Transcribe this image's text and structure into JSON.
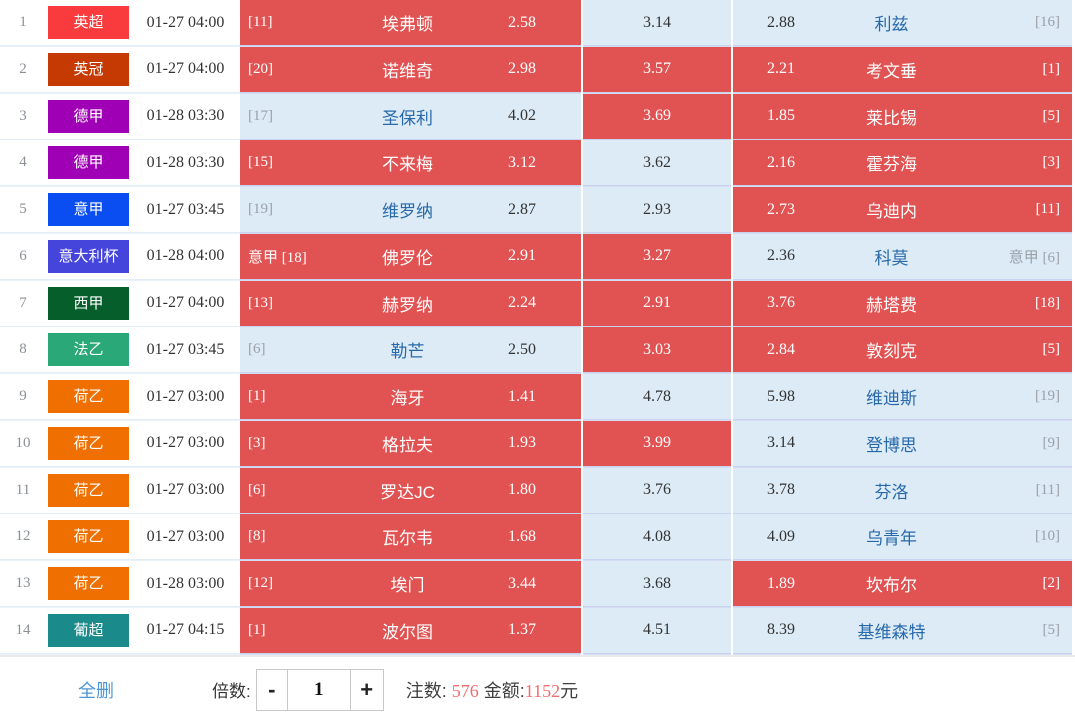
{
  "colors": {
    "selected_cell": "#e15252",
    "unselected_cell": "#dcebf6",
    "cell_separator": "#c9d2ef",
    "team_link_blue": "#2769ab",
    "rank_gray": "#9aa1a9",
    "stake_number_red": "#f26d6d",
    "delete_link_blue": "#4d96d4"
  },
  "table": {
    "rows": [
      {
        "num": "1",
        "league": {
          "label": "英超",
          "color": "#fa3b3d"
        },
        "time": "01-27 04:00",
        "home": {
          "rank": "[11]",
          "name": "埃弗顿",
          "odds": "2.58",
          "selected": true
        },
        "draw": {
          "odds": "3.14",
          "selected": false
        },
        "away": {
          "odds": "2.88",
          "name": "利兹",
          "rank": "[16]",
          "selected": false
        }
      },
      {
        "num": "2",
        "league": {
          "label": "英冠",
          "color": "#c43a02"
        },
        "time": "01-27 04:00",
        "home": {
          "rank": "[20]",
          "name": "诺维奇",
          "odds": "2.98",
          "selected": true
        },
        "draw": {
          "odds": "3.57",
          "selected": true
        },
        "away": {
          "odds": "2.21",
          "name": "考文垂",
          "rank": "[1]",
          "selected": true
        }
      },
      {
        "num": "3",
        "league": {
          "label": "德甲",
          "color": "#a000b5"
        },
        "time": "01-28 03:30",
        "home": {
          "rank": "[17]",
          "name": "圣保利",
          "odds": "4.02",
          "selected": false
        },
        "draw": {
          "odds": "3.69",
          "selected": true
        },
        "away": {
          "odds": "1.85",
          "name": "莱比锡",
          "rank": "[5]",
          "selected": true
        }
      },
      {
        "num": "4",
        "league": {
          "label": "德甲",
          "color": "#a000b5"
        },
        "time": "01-28 03:30",
        "home": {
          "rank": "[15]",
          "name": "不来梅",
          "odds": "3.12",
          "selected": true
        },
        "draw": {
          "odds": "3.62",
          "selected": false
        },
        "away": {
          "odds": "2.16",
          "name": "霍芬海",
          "rank": "[3]",
          "selected": true
        }
      },
      {
        "num": "5",
        "league": {
          "label": "意甲",
          "color": "#0a4ef2"
        },
        "time": "01-27 03:45",
        "home": {
          "rank": "[19]",
          "name": "维罗纳",
          "odds": "2.87",
          "selected": false
        },
        "draw": {
          "odds": "2.93",
          "selected": false
        },
        "away": {
          "odds": "2.73",
          "name": "乌迪内",
          "rank": "[11]",
          "selected": true
        }
      },
      {
        "num": "6",
        "league": {
          "label": "意大利杯",
          "color": "#4545dc"
        },
        "time": "01-28 04:00",
        "home": {
          "rank": "意甲 [18]",
          "name": "佛罗伦",
          "odds": "2.91",
          "selected": true
        },
        "draw": {
          "odds": "3.27",
          "selected": true
        },
        "away": {
          "odds": "2.36",
          "name": "科莫",
          "rank": "意甲 [6]",
          "selected": false
        }
      },
      {
        "num": "7",
        "league": {
          "label": "西甲",
          "color": "#065f2b"
        },
        "time": "01-27 04:00",
        "home": {
          "rank": "[13]",
          "name": "赫罗纳",
          "odds": "2.24",
          "selected": true
        },
        "draw": {
          "odds": "2.91",
          "selected": true
        },
        "away": {
          "odds": "3.76",
          "name": "赫塔费",
          "rank": "[18]",
          "selected": true
        }
      },
      {
        "num": "8",
        "league": {
          "label": "法乙",
          "color": "#2aa877"
        },
        "time": "01-27 03:45",
        "home": {
          "rank": "[6]",
          "name": "勒芒",
          "odds": "2.50",
          "selected": false
        },
        "draw": {
          "odds": "3.03",
          "selected": true
        },
        "away": {
          "odds": "2.84",
          "name": "敦刻克",
          "rank": "[5]",
          "selected": true
        }
      },
      {
        "num": "9",
        "league": {
          "label": "荷乙",
          "color": "#ef6f00"
        },
        "time": "01-27 03:00",
        "home": {
          "rank": "[1]",
          "name": "海牙",
          "odds": "1.41",
          "selected": true
        },
        "draw": {
          "odds": "4.78",
          "selected": false
        },
        "away": {
          "odds": "5.98",
          "name": "维迪斯",
          "rank": "[19]",
          "selected": false
        }
      },
      {
        "num": "10",
        "league": {
          "label": "荷乙",
          "color": "#ef6f00"
        },
        "time": "01-27 03:00",
        "home": {
          "rank": "[3]",
          "name": "格拉夫",
          "odds": "1.93",
          "selected": true
        },
        "draw": {
          "odds": "3.99",
          "selected": true
        },
        "away": {
          "odds": "3.14",
          "name": "登博思",
          "rank": "[9]",
          "selected": false
        }
      },
      {
        "num": "11",
        "league": {
          "label": "荷乙",
          "color": "#ef6f00"
        },
        "time": "01-27 03:00",
        "home": {
          "rank": "[6]",
          "name": "罗达JC",
          "odds": "1.80",
          "selected": true
        },
        "draw": {
          "odds": "3.76",
          "selected": false
        },
        "away": {
          "odds": "3.78",
          "name": "芬洛",
          "rank": "[11]",
          "selected": false
        }
      },
      {
        "num": "12",
        "league": {
          "label": "荷乙",
          "color": "#ef6f00"
        },
        "time": "01-27 03:00",
        "home": {
          "rank": "[8]",
          "name": "瓦尔韦",
          "odds": "1.68",
          "selected": true
        },
        "draw": {
          "odds": "4.08",
          "selected": false
        },
        "away": {
          "odds": "4.09",
          "name": "乌青年",
          "rank": "[10]",
          "selected": false
        }
      },
      {
        "num": "13",
        "league": {
          "label": "荷乙",
          "color": "#ef6f00"
        },
        "time": "01-28 03:00",
        "home": {
          "rank": "[12]",
          "name": "埃门",
          "odds": "3.44",
          "selected": true
        },
        "draw": {
          "odds": "3.68",
          "selected": false
        },
        "away": {
          "odds": "1.89",
          "name": "坎布尔",
          "rank": "[2]",
          "selected": true
        }
      },
      {
        "num": "14",
        "league": {
          "label": "葡超",
          "color": "#1a8a8a"
        },
        "time": "01-27 04:15",
        "home": {
          "rank": "[1]",
          "name": "波尔图",
          "odds": "1.37",
          "selected": true
        },
        "draw": {
          "odds": "4.51",
          "selected": false
        },
        "away": {
          "odds": "8.39",
          "name": "基维森特",
          "rank": "[5]",
          "selected": false
        }
      }
    ]
  },
  "toolbar": {
    "delete_all": "全删",
    "multiplier_label": "倍数:",
    "minus": "-",
    "multiplier_value": "1",
    "plus": "+",
    "bets_label": "注数:",
    "bets_value": "576",
    "amount_label": "金额:",
    "amount_value": "1152",
    "amount_unit": "元"
  }
}
